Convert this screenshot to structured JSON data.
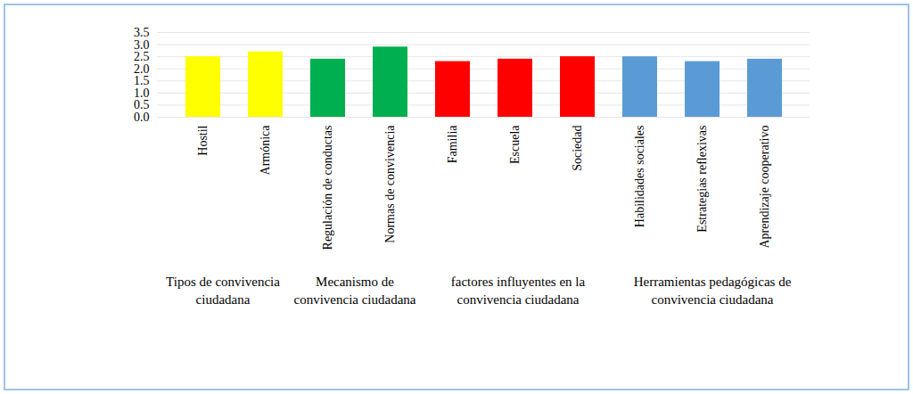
{
  "chart_data": {
    "type": "bar",
    "categories": [
      "Hostil",
      "Armónica",
      "Regulación de conductas",
      "Normas de convivencia",
      "Familia",
      "Escuela",
      "Sociedad",
      "Habilidades sociales",
      "Estrategias reflexivas",
      "Aprendizaje cooperativo"
    ],
    "values": [
      2.5,
      2.7,
      2.4,
      2.9,
      2.3,
      2.4,
      2.5,
      2.5,
      2.3,
      2.4
    ],
    "colors": [
      "#ffff00",
      "#ffff00",
      "#00b050",
      "#00b050",
      "#ff0000",
      "#ff0000",
      "#ff0000",
      "#5b9bd5",
      "#5b9bd5",
      "#5b9bd5"
    ],
    "ylim": [
      0,
      3.5
    ],
    "yticks": [
      0,
      0.5,
      1,
      1.5,
      2,
      2.5,
      3,
      3.5
    ],
    "grid": true,
    "groups": [
      {
        "name": "Tipos de convivencia ciudadana",
        "categories": [
          "Hostil",
          "Armónica"
        ]
      },
      {
        "name": "Mecanismo de convivencia ciudadana",
        "categories": [
          "Regulación de conductas",
          "Normas de convivencia"
        ]
      },
      {
        "name": "factores influyentes en la convivencia ciudadana",
        "categories": [
          "Familia",
          "Escuela",
          "Sociedad"
        ]
      },
      {
        "name": "Herramientas pedagógicas de convivencia ciudadana",
        "categories": [
          "Habilidades sociales",
          "Estrategias reflexivas",
          "Aprendizaje cooperativo"
        ]
      }
    ]
  }
}
